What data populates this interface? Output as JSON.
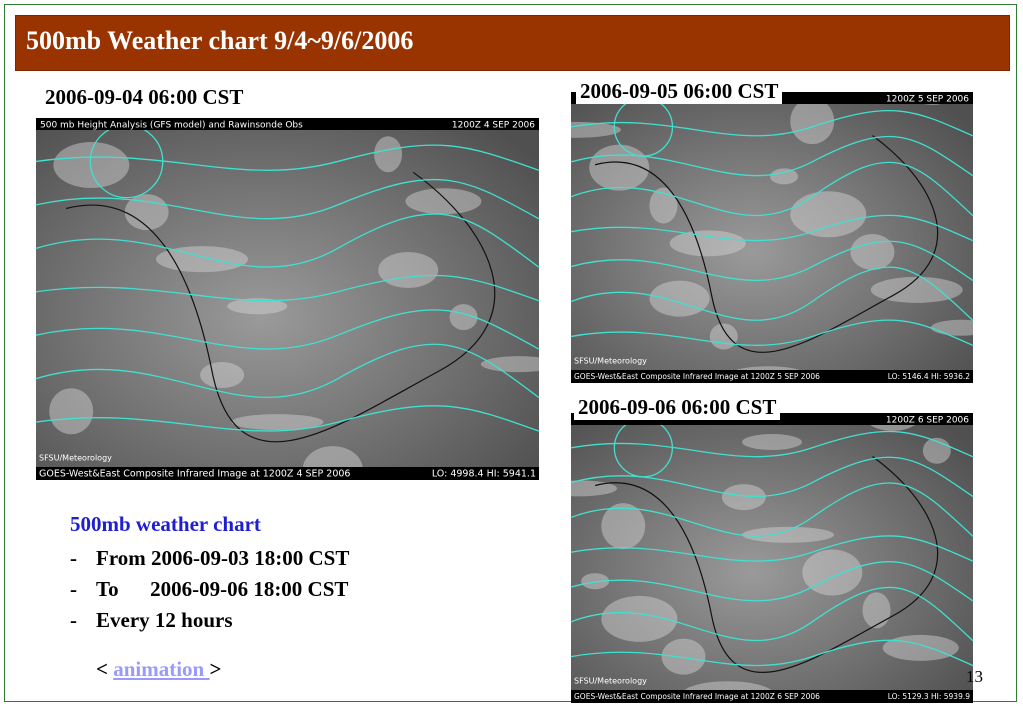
{
  "title": "500mb Weather chart 9/4~9/6/2006",
  "panels": [
    {
      "label": "2006-09-04 06:00 CST",
      "top_left": "500 mb Height Analysis (GFS model) and Rawinsonde Obs",
      "top_right": "1200Z 4 SEP 2006",
      "credit": "SFSU/Meteorology",
      "caption": "GOES-West&East Composite Infrared Image at 1200Z 4 SEP 2006",
      "lo_hi": "LO: 4998.4   HI: 5941.1"
    },
    {
      "label": "2006-09-05 06:00 CST",
      "top_right": "1200Z 5 SEP 2006",
      "credit": "SFSU/Meteorology",
      "caption": "GOES-West&East Composite Infrared Image at 1200Z 5 SEP 2006",
      "lo_hi": "LO: 5146.4   HI: 5936.2"
    },
    {
      "label": "2006-09-06 06:00 CST",
      "top_right": "1200Z 6 SEP 2006",
      "credit": "SFSU/Meteorology",
      "caption": "GOES-West&East Composite Infrared Image at 1200Z 6 SEP 2006",
      "lo_hi": "LO: 5129.3   HI: 5939.9"
    }
  ],
  "notes": {
    "heading": "500mb weather chart",
    "items": [
      {
        "marker": "-",
        "text": "From 2006-09-03 18:00 CST"
      },
      {
        "marker": "-",
        "text": "To      2006-09-06 18:00 CST"
      },
      {
        "marker": "-",
        "text": "Every 12 hours"
      }
    ]
  },
  "link": {
    "prefix": "< ",
    "text": "animation ",
    "suffix": ">"
  },
  "page_number": "13"
}
